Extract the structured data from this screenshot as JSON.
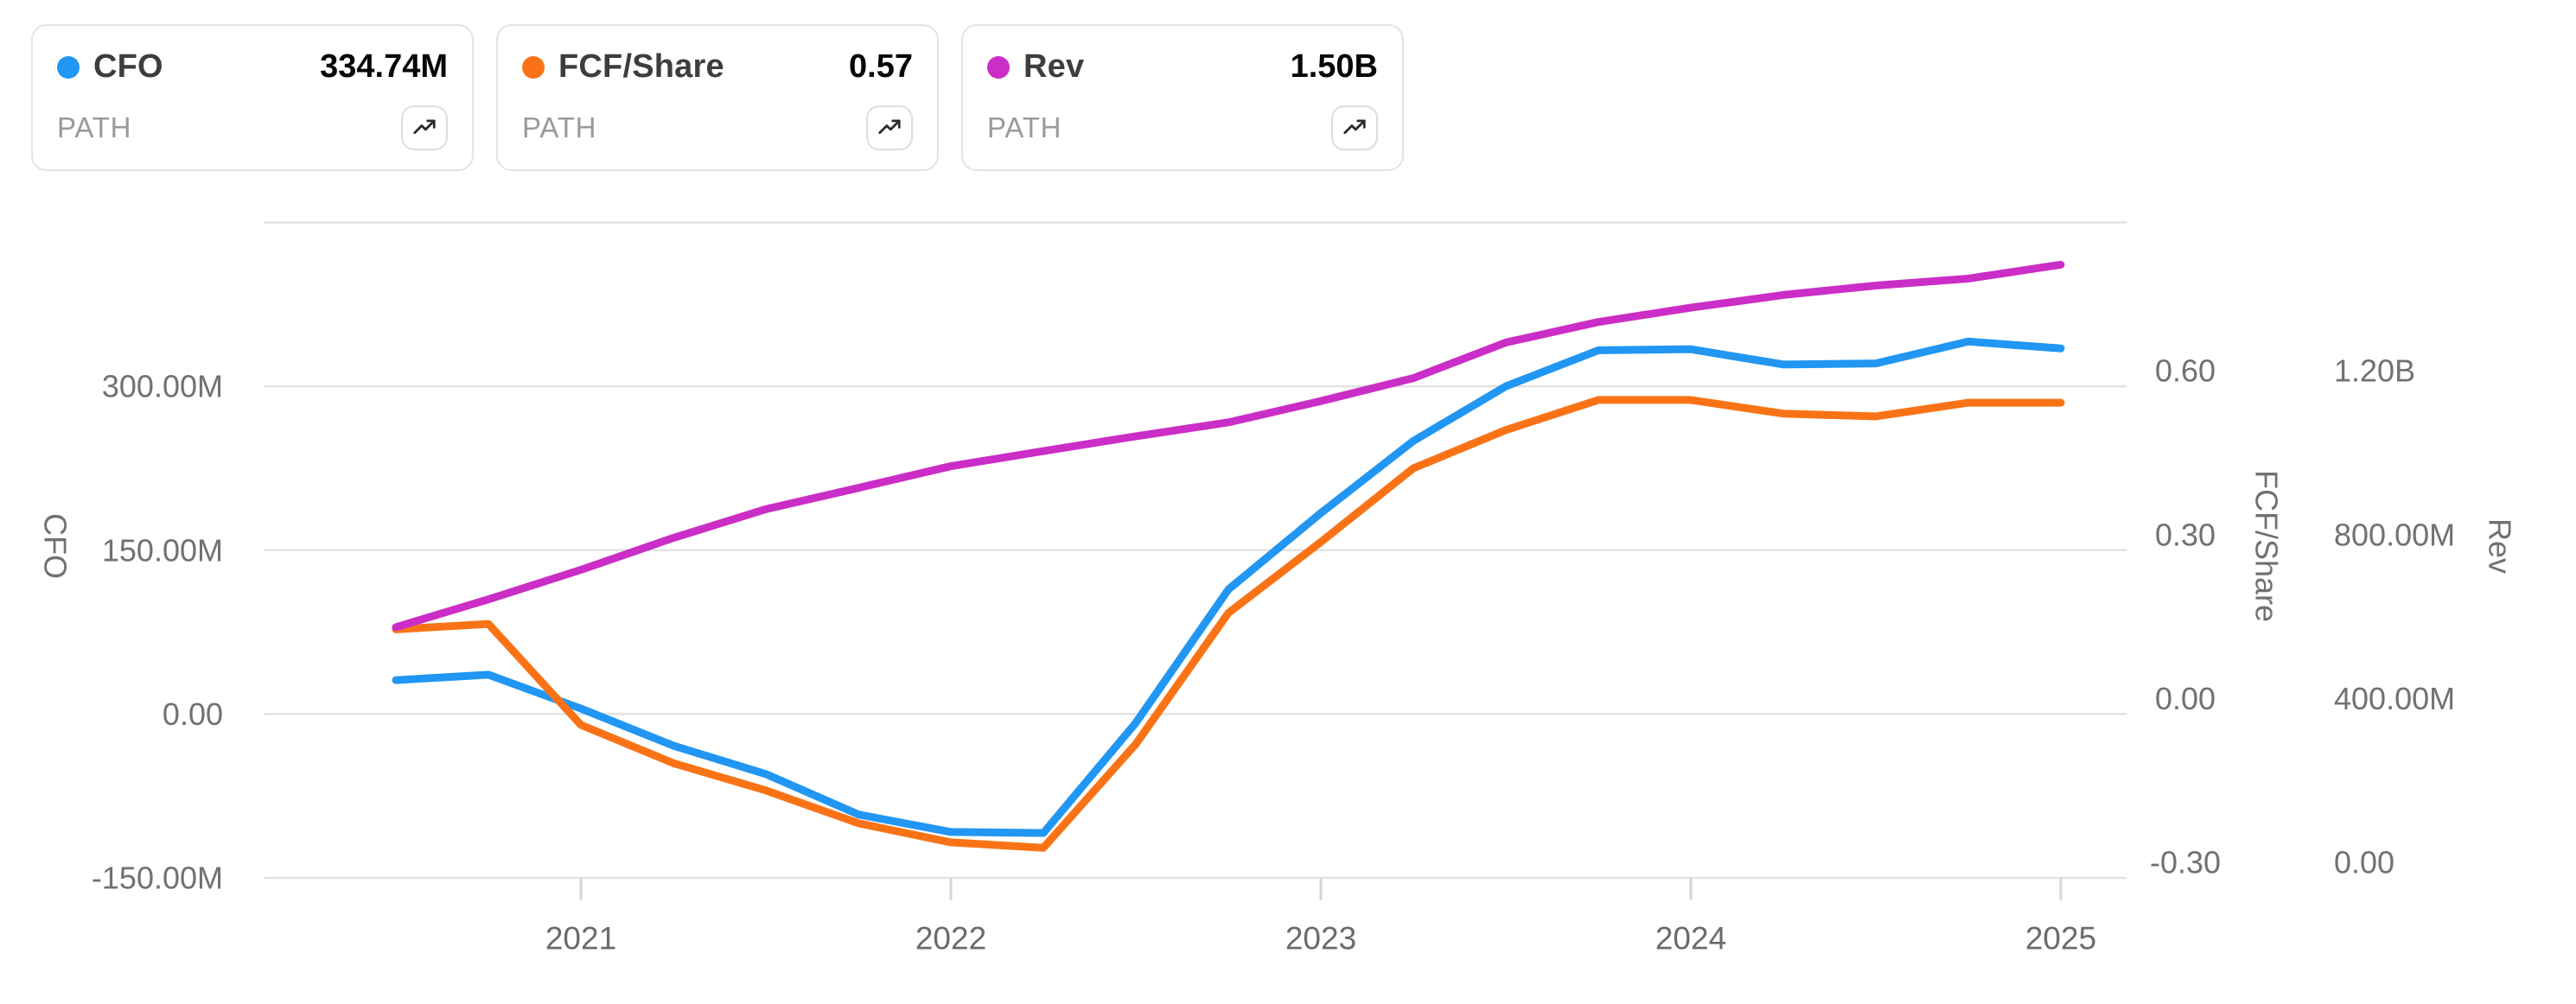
{
  "legend_cards": [
    {
      "label": "CFO",
      "value": "334.74M",
      "ticker": "PATH",
      "color": "#2196f3"
    },
    {
      "label": "FCF/Share",
      "value": "0.57",
      "ticker": "PATH",
      "color": "#f97316"
    },
    {
      "label": "Rev",
      "value": "1.50B",
      "ticker": "PATH",
      "color": "#cb2dc7"
    }
  ],
  "chart_data": {
    "type": "line",
    "grid": true,
    "x": [
      2020.5,
      2020.75,
      2021.0,
      2021.25,
      2021.5,
      2021.75,
      2022.0,
      2022.25,
      2022.5,
      2022.75,
      2023.0,
      2023.25,
      2023.5,
      2023.75,
      2024.0,
      2024.25,
      2024.5,
      2024.75,
      2025.0
    ],
    "x_axis": {
      "ticks": [
        2021,
        2022,
        2023,
        2024,
        2025
      ],
      "labels": [
        "2021",
        "2022",
        "2023",
        "2024",
        "2025"
      ]
    },
    "axes": {
      "CFO": {
        "title": "CFO",
        "side": "left",
        "min": -150,
        "max": 450,
        "unit": "USD millions",
        "tick_values": [
          300,
          150,
          0,
          -150
        ],
        "tick_labels": [
          "300.00M",
          "150.00M",
          "0.00",
          "-150.00M"
        ]
      },
      "FCF": {
        "title": "FCF/Share",
        "side": "right-inner",
        "min": -0.3,
        "max": 0.9,
        "tick_values": [
          0.6,
          0.3,
          0,
          -0.3
        ],
        "tick_labels": [
          "0.60",
          "0.30",
          "0.00",
          "-0.30"
        ]
      },
      "Rev": {
        "title": "Rev",
        "side": "right-outer",
        "min": 0,
        "max": 1600,
        "unit": "USD millions",
        "tick_values": [
          1200,
          800,
          400,
          0
        ],
        "tick_labels": [
          "1.20B",
          "800.00M",
          "400.00M",
          "0.00"
        ]
      }
    },
    "series": [
      {
        "name": "CFO",
        "axis": "CFO",
        "color": "#2196f3",
        "values": [
          31,
          36,
          5,
          -29,
          -55,
          -92,
          -108,
          -109,
          -8,
          114,
          184,
          250,
          300,
          333,
          334,
          320,
          321,
          341,
          334.74
        ]
      },
      {
        "name": "FCF/Share",
        "axis": "FCF",
        "color": "#f97316",
        "values": [
          0.155,
          0.165,
          -0.02,
          -0.09,
          -0.14,
          -0.2,
          -0.235,
          -0.245,
          -0.055,
          0.185,
          0.315,
          0.45,
          0.52,
          0.575,
          0.575,
          0.55,
          0.545,
          0.57,
          0.57
        ]
      },
      {
        "name": "Rev",
        "axis": "Rev",
        "color": "#cb2dc7",
        "values": [
          612,
          680,
          752,
          830,
          900,
          952,
          1005,
          1042,
          1078,
          1112,
          1164,
          1220,
          1307,
          1357,
          1392,
          1423,
          1446,
          1463,
          1497
        ]
      }
    ]
  }
}
